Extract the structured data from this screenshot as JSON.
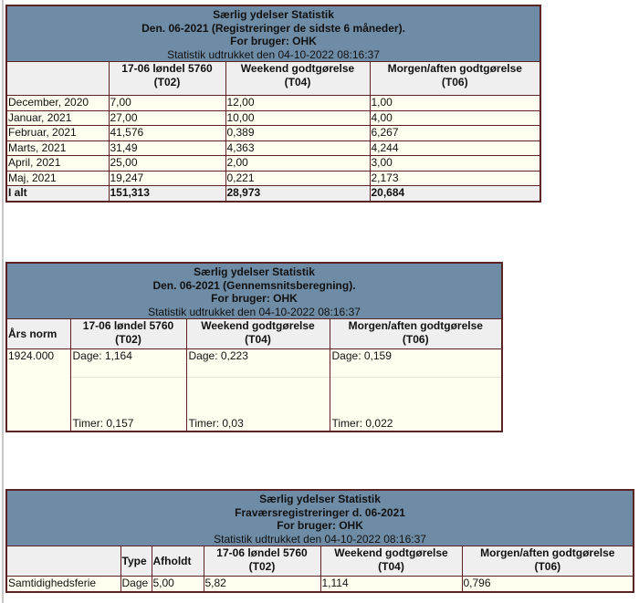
{
  "colors": {
    "header_bg": "#6f8ca6",
    "border": "#5a2424",
    "data_bg": "#fffff0",
    "colheader_bg": "#efefef"
  },
  "table1": {
    "title": "Særlig ydelser Statistik",
    "subtitle": "Den. 06-2021 (Registreringer de sidste 6 måneder).",
    "user": "For bruger: OHK",
    "extracted": "Statistik udtrukket den 04-10-2022 08:16:37",
    "columns": [
      {
        "name": "17-06 løndel 5760",
        "code": "(T02)"
      },
      {
        "name": "Weekend godtgørelse",
        "code": "(T04)"
      },
      {
        "name": "Morgen/aften godtgørelse",
        "code": "(T06)"
      }
    ],
    "rows": [
      {
        "label": "December, 2020",
        "values": [
          "7,00",
          "12,00",
          "1,00"
        ]
      },
      {
        "label": "Januar, 2021",
        "values": [
          "27,00",
          "10,00",
          "4,00"
        ]
      },
      {
        "label": "Februar, 2021",
        "values": [
          "41,576",
          "0,389",
          "6,267"
        ]
      },
      {
        "label": "Marts, 2021",
        "values": [
          "31,49",
          "4,363",
          "4,244"
        ]
      },
      {
        "label": "April, 2021",
        "values": [
          "25,00",
          "2,00",
          "3,00"
        ]
      },
      {
        "label": "Maj, 2021",
        "values": [
          "19,247",
          "0,221",
          "2,173"
        ]
      }
    ],
    "total": {
      "label": "I alt",
      "values": [
        "151,313",
        "28,973",
        "20,684"
      ]
    }
  },
  "table2": {
    "title": "Særlig ydelser Statistik",
    "subtitle": "Den. 06-2021 (Gennemsnitsberegning).",
    "user": "For bruger: OHK",
    "extracted": "Statistik udtrukket den 04-10-2022 08:16:37",
    "first_col": "Års norm",
    "columns": [
      {
        "name": "17-06 løndel 5760",
        "code": "(T02)"
      },
      {
        "name": "Weekend godtgørelse",
        "code": "(T04)"
      },
      {
        "name": "Morgen/aften godtgørelse",
        "code": "(T06)"
      }
    ],
    "norm": "1924.000",
    "cells": [
      {
        "dage": "Dage: 1,164",
        "timer": "Timer: 0,157"
      },
      {
        "dage": "Dage: 0,223",
        "timer": "Timer: 0,03"
      },
      {
        "dage": "Dage: 0,159",
        "timer": "Timer: 0,022"
      }
    ]
  },
  "table3": {
    "title": "Særlig ydelser Statistik",
    "subtitle": "Fraværsregistreringer d. 06-2021",
    "user": "For bruger: OHK",
    "extracted": "Statistik udtrukket den 04-10-2022 08:16:37",
    "type_col": "Type",
    "afholdt_col": "Afholdt",
    "columns": [
      {
        "name": "17-06 løndel 5760",
        "code": "(T02)"
      },
      {
        "name": "Weekend godtgørelse",
        "code": "(T04)"
      },
      {
        "name": "Morgen/aften godtgørelse",
        "code": "(T06)"
      }
    ],
    "row": {
      "label": "Samtidighedsferie",
      "type": "Dage",
      "afholdt": "5,00",
      "values": [
        "5,82",
        "1,114",
        "0,796"
      ]
    }
  }
}
